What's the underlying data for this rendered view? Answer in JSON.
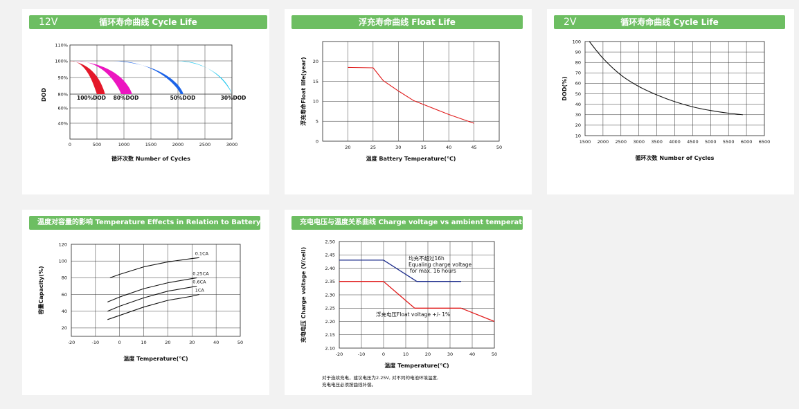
{
  "panels": {
    "p1": {
      "voltage": "12V",
      "title": "循环寿命曲线 Cycle Life"
    },
    "p2": {
      "voltage": "",
      "title": "浮充寿命曲线 Float Life"
    },
    "p3": {
      "voltage": "2V",
      "title": "循环寿命曲线 Cycle Life"
    },
    "p4": {
      "voltage": "",
      "title": "温度对容量的影响 Temperature Effects in Relation to Battery Capacity"
    },
    "p5": {
      "voltage": "",
      "title": "充电电压与温度关系曲线 Charge voltage vs ambient temperature curve",
      "note_line1": "对于连续充电，建议电压为2.25V, 对不同的电池环境温度,",
      "note_line2": "充电电压必须按曲线补偿。"
    }
  },
  "chart_data": [
    {
      "id": "cycle12",
      "type": "area",
      "title": "",
      "xlabel": "循环次数  Number of Cycles",
      "ylabel": "DOD",
      "xlim": [
        0,
        3000
      ],
      "xticks": [
        0,
        500,
        1000,
        1500,
        2000,
        2500,
        3000
      ],
      "yticks": [
        "110%",
        "100%",
        "90%",
        "80%",
        "60%",
        "40%"
      ],
      "grid": true,
      "series": [
        {
          "name": "100%DOD",
          "color": "#e4182a",
          "band": [
            [
              0,
              100
            ],
            [
              500,
              80
            ],
            [
              650,
              80
            ]
          ]
        },
        {
          "name": "80%DOD",
          "color": "#ec15c0",
          "band": [
            [
              100,
              100
            ],
            [
              950,
              80
            ],
            [
              1150,
              80
            ]
          ]
        },
        {
          "name": "50%DOD",
          "color": "#1b63e8",
          "band": [
            [
              800,
              100
            ],
            [
              2050,
              80
            ],
            [
              2100,
              80
            ]
          ]
        },
        {
          "name": "30%DOD",
          "color": "#21c7ee",
          "band": [
            [
              2000,
              100
            ],
            [
              3000,
              80
            ],
            [
              3000,
              80
            ]
          ]
        }
      ]
    },
    {
      "id": "float",
      "type": "line",
      "title": "",
      "xlabel": "温度  Battery Temperature(℃)",
      "ylabel": "浮充寿命Float life(year)",
      "xlim": [
        15,
        50
      ],
      "ylim": [
        0,
        25
      ],
      "xticks": [
        20,
        25,
        30,
        35,
        40,
        45,
        50
      ],
      "yticks": [
        0,
        5,
        10,
        15,
        20
      ],
      "grid": true,
      "series": [
        {
          "color": "#e01b1b",
          "x": [
            20,
            25,
            27,
            30,
            33,
            35,
            40,
            45
          ],
          "y": [
            18.5,
            18.4,
            15.2,
            12.6,
            10.2,
            9.2,
            6.7,
            4.5
          ]
        }
      ]
    },
    {
      "id": "cycle2",
      "type": "line",
      "title": "",
      "xlabel": "循环次数  Number of Cycles",
      "ylabel": "DOD(%)",
      "xlim": [
        1500,
        6500
      ],
      "ylim": [
        10,
        100
      ],
      "xticks": [
        1500,
        2000,
        2500,
        3000,
        3500,
        4000,
        4500,
        5000,
        5500,
        6000,
        6500
      ],
      "yticks": [
        10,
        20,
        30,
        40,
        50,
        60,
        70,
        80,
        90,
        100
      ],
      "grid": true,
      "series": [
        {
          "color": "#111111",
          "x": [
            1620,
            2000,
            2500,
            3000,
            3500,
            4000,
            4500,
            5000,
            5500,
            5900
          ],
          "y": [
            100,
            84,
            68,
            57,
            49,
            42.5,
            37.5,
            34,
            31.5,
            30
          ]
        }
      ]
    },
    {
      "id": "temp",
      "type": "line",
      "title": "",
      "xlabel": "温度  Temperature(℃)",
      "ylabel": "容量Capacity(%)",
      "xlim": [
        -20,
        50
      ],
      "ylim": [
        10,
        120
      ],
      "xticks": [
        -20,
        -10,
        0,
        10,
        20,
        30,
        40,
        50
      ],
      "yticks": [
        20,
        40,
        60,
        80,
        100,
        120
      ],
      "grid": true,
      "series": [
        {
          "name": "0.1CA",
          "x": [
            -4,
            0,
            10,
            20,
            30,
            33
          ],
          "y": [
            80,
            84,
            93,
            99,
            103,
            104
          ]
        },
        {
          "name": "0.25CA",
          "x": [
            -5,
            0,
            10,
            20,
            30,
            32
          ],
          "y": [
            51,
            57,
            67,
            74,
            79,
            80
          ]
        },
        {
          "name": "0.6CA",
          "x": [
            -5,
            0,
            10,
            20,
            30,
            32
          ],
          "y": [
            40,
            46,
            56,
            64,
            69,
            70
          ]
        },
        {
          "name": "1CA",
          "x": [
            -5,
            0,
            10,
            20,
            30,
            33
          ],
          "y": [
            30,
            35,
            45,
            53,
            58,
            60
          ]
        }
      ]
    },
    {
      "id": "charge",
      "type": "line",
      "title": "",
      "xlabel": "温度  Temperature(℃)",
      "ylabel": "充电电压  Charge voltage (V/cell)",
      "xlim": [
        -20,
        50
      ],
      "ylim": [
        2.1,
        2.5
      ],
      "xticks": [
        -20,
        -10,
        0,
        10,
        20,
        30,
        40,
        50
      ],
      "yticks": [
        "2.10",
        "2.15",
        "2.20",
        "2.25",
        "2.30",
        "2.35",
        "2.40",
        "2.45",
        "2.50"
      ],
      "grid": true,
      "series": [
        {
          "name_line1": "均充不超过16h",
          "name_line2": "Equaling charge voltage",
          "name_line3": "for max. 16 hours",
          "color": "#1a2a8a",
          "x": [
            -20,
            0,
            15,
            35
          ],
          "y": [
            2.43,
            2.43,
            2.35,
            2.35
          ]
        },
        {
          "name": "浮充电压Float voltage +/- 1%",
          "color": "#e01b1b",
          "x": [
            -20,
            0,
            14,
            35,
            50
          ],
          "y": [
            2.35,
            2.35,
            2.25,
            2.25,
            2.2
          ]
        }
      ]
    }
  ]
}
